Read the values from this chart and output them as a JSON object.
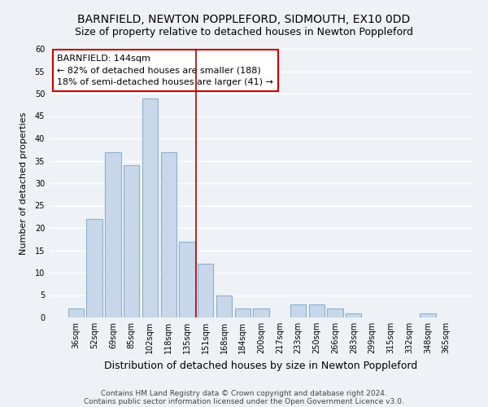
{
  "title": "BARNFIELD, NEWTON POPPLEFORD, SIDMOUTH, EX10 0DD",
  "subtitle": "Size of property relative to detached houses in Newton Poppleford",
  "xlabel": "Distribution of detached houses by size in Newton Poppleford",
  "ylabel": "Number of detached properties",
  "bar_color": "#c8d8ea",
  "bar_edge_color": "#8ab0cc",
  "background_color": "#eef2f7",
  "grid_color": "#ffffff",
  "categories": [
    "36sqm",
    "52sqm",
    "69sqm",
    "85sqm",
    "102sqm",
    "118sqm",
    "135sqm",
    "151sqm",
    "168sqm",
    "184sqm",
    "200sqm",
    "217sqm",
    "233sqm",
    "250sqm",
    "266sqm",
    "283sqm",
    "299sqm",
    "315sqm",
    "332sqm",
    "348sqm",
    "365sqm"
  ],
  "values": [
    2,
    22,
    37,
    34,
    49,
    37,
    17,
    12,
    5,
    2,
    2,
    0,
    3,
    3,
    2,
    1,
    0,
    0,
    0,
    1,
    0
  ],
  "ylim": [
    0,
    60
  ],
  "yticks": [
    0,
    5,
    10,
    15,
    20,
    25,
    30,
    35,
    40,
    45,
    50,
    55,
    60
  ],
  "annotation_title": "BARNFIELD: 144sqm",
  "annotation_line1": "← 82% of detached houses are smaller (188)",
  "annotation_line2": "18% of semi-detached houses are larger (41) →",
  "vline_color": "#aa0000",
  "annotation_box_facecolor": "#ffffff",
  "annotation_box_edgecolor": "#cc0000",
  "footer1": "Contains HM Land Registry data © Crown copyright and database right 2024.",
  "footer2": "Contains public sector information licensed under the Open Government Licence v3.0.",
  "title_fontsize": 10,
  "subtitle_fontsize": 9,
  "xlabel_fontsize": 9,
  "ylabel_fontsize": 8,
  "tick_fontsize": 7,
  "annotation_fontsize": 8,
  "footer_fontsize": 6.5
}
